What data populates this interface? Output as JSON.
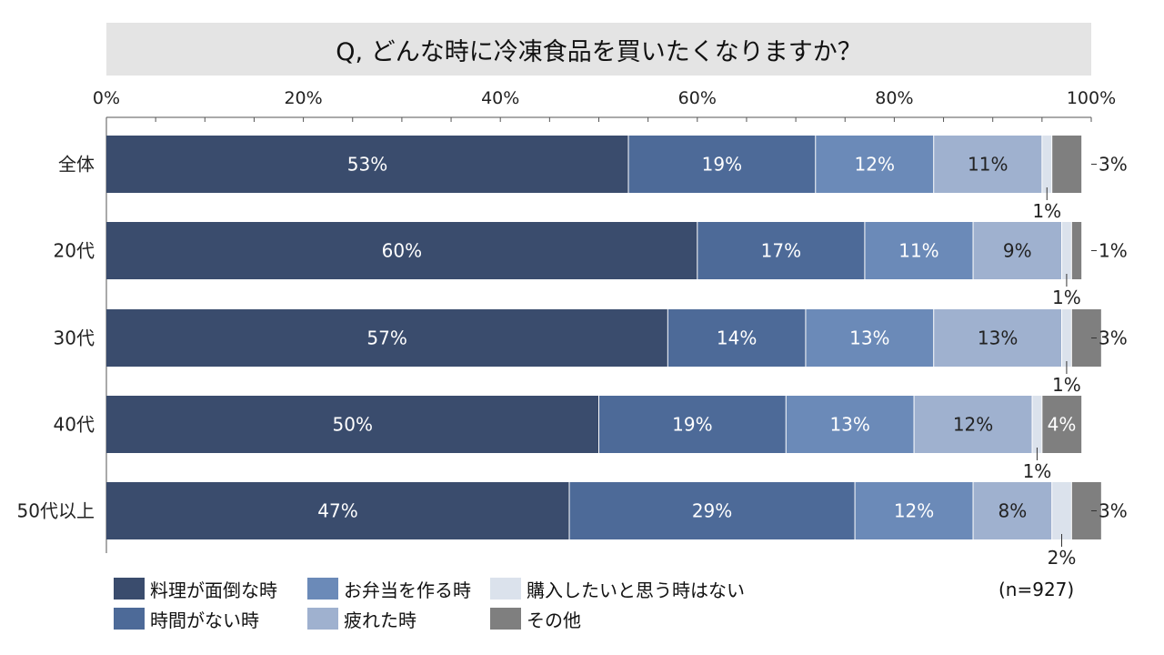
{
  "title": "Q, どんな時に冷凍食品を買いたくなりますか？",
  "sample_note": "(n=927)",
  "colors": {
    "料理が面倒な時": "#3a4c6d",
    "時間がない時": "#4d6a98",
    "お弁当を作る時": "#6b8ab8",
    "疲れた時": "#9fb1cf",
    "購入したいと思う時はない": "#dbe2ec",
    "その他": "#7f7f7f"
  },
  "legend": [
    {
      "label": "料理が面倒な時",
      "color": "#3a4c6d"
    },
    {
      "label": "お弁当を作る時",
      "color": "#6b8ab8"
    },
    {
      "label": "購入したいと思う時はない",
      "color": "#dbe2ec"
    },
    {
      "label": "時間がない時",
      "color": "#4d6a98"
    },
    {
      "label": "疲れた時",
      "color": "#9fb1cf"
    },
    {
      "label": "その他",
      "color": "#7f7f7f"
    }
  ],
  "chart_data": {
    "type": "bar",
    "orientation": "horizontal",
    "stacked": true,
    "xlim": [
      0,
      100
    ],
    "x_ticks": [
      "0%",
      "20%",
      "40%",
      "60%",
      "80%",
      "100%"
    ],
    "axis_position": "top",
    "categories": [
      "全体",
      "20代",
      "30代",
      "40代",
      "50代以上"
    ],
    "series": [
      {
        "name": "料理が面倒な時",
        "values": [
          53,
          60,
          57,
          50,
          47
        ]
      },
      {
        "name": "時間がない時",
        "values": [
          19,
          17,
          14,
          19,
          29
        ]
      },
      {
        "name": "お弁当を作る時",
        "values": [
          12,
          11,
          13,
          13,
          12
        ]
      },
      {
        "name": "疲れた時",
        "values": [
          11,
          9,
          13,
          12,
          8
        ]
      },
      {
        "name": "購入したいと思う時はない",
        "values": [
          1,
          1,
          1,
          1,
          2
        ]
      },
      {
        "name": "その他",
        "values": [
          3,
          1,
          3,
          4,
          3
        ]
      }
    ],
    "value_labels": [
      [
        "53%",
        "19%",
        "12%",
        "11%",
        "1%",
        "3%"
      ],
      [
        "60%",
        "17%",
        "11%",
        "9%",
        "1%",
        "1%"
      ],
      [
        "57%",
        "14%",
        "13%",
        "13%",
        "1%",
        "3%"
      ],
      [
        "50%",
        "19%",
        "13%",
        "12%",
        "1%",
        "4%"
      ],
      [
        "47%",
        "29%",
        "12%",
        "8%",
        "2%",
        "3%"
      ]
    ],
    "legend_position": "bottom"
  }
}
